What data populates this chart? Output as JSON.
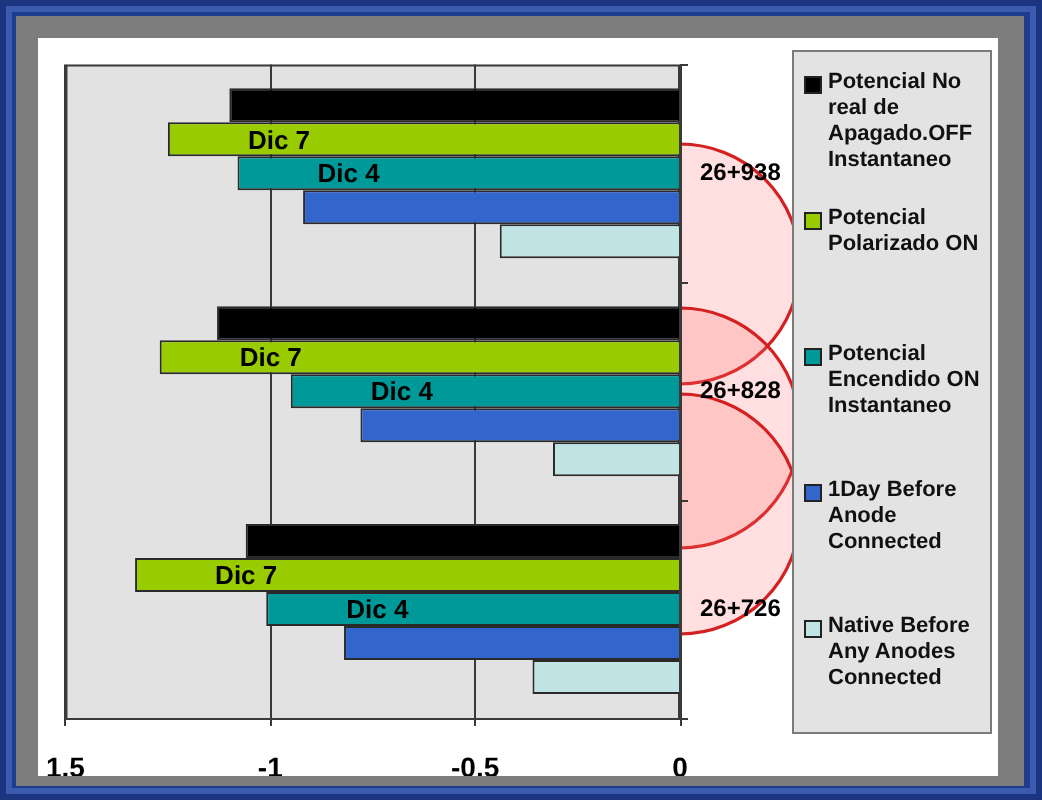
{
  "chart_data": {
    "type": "bar",
    "orientation": "horizontal",
    "categories": [
      "26+938",
      "26+828",
      "26+726"
    ],
    "series": [
      {
        "name": "Potencial No real de Apagado.OFF Instantaneo",
        "color": "#000000",
        "values": [
          -1.1,
          -1.13,
          -1.06
        ]
      },
      {
        "name": "Potencial Polarizado ON",
        "color": "#99cc00",
        "values": [
          -1.25,
          -1.27,
          -1.33
        ],
        "value_labels": [
          "Dic 7",
          "Dic 7",
          "Dic 7"
        ]
      },
      {
        "name": "Potencial Encendido ON Instantaneo",
        "color": "#009999",
        "values": [
          -1.08,
          -0.95,
          -1.01
        ],
        "value_labels": [
          "Dic 4",
          "Dic 4",
          "Dic 4"
        ]
      },
      {
        "name": "1Day Before Anode Connected",
        "color": "#3366cc",
        "values": [
          -0.92,
          -0.78,
          -0.82
        ]
      },
      {
        "name": "Native Before Any Anodes Connected",
        "color": "#c0e4e4",
        "values": [
          -0.44,
          -0.31,
          -0.36
        ]
      }
    ],
    "xlim": [
      -1.5,
      0
    ],
    "xticks": [
      {
        "value": -1.5,
        "label": "1.5"
      },
      -1,
      -0.5,
      0
    ],
    "grid": "x",
    "legend": "right"
  }
}
